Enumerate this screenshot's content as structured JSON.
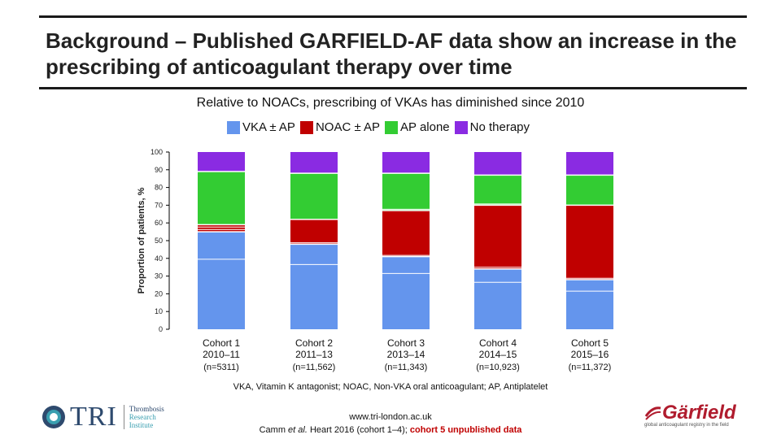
{
  "slide": {
    "title": "Background – Published GARFIELD-AF data show an increase in the prescribing of anticoagulant therapy over time",
    "subtitle": "Relative to NOACs, prescribing of VKAs has diminished since 2010",
    "abbreviations": "VKA, Vitamin K antagonist; NOAC, Non-VKA oral anticoagulant; AP, Antiplatelet",
    "website": "www.tri-london.ac.uk",
    "citation_prefix": "Camm ",
    "citation_etal": "et al.",
    "citation_mid": " Heart  2016 (cohort 1–4); ",
    "citation_red": "cohort 5 unpublished data"
  },
  "logos": {
    "tri": {
      "name": "TRI",
      "line1": "Thrombosis",
      "line2": "Research",
      "line3": "Institute"
    },
    "garfield": {
      "name": "Gärfield",
      "tagline": "global anticoagulant registry in the field"
    }
  },
  "colors": {
    "vka": "#6495ED",
    "noac": "#C00000",
    "ap": "#33CC33",
    "none": "#8A2BE2"
  },
  "chart_data": {
    "type": "bar",
    "stacked": true,
    "title": "",
    "xlabel": "",
    "ylabel": "Proportion of patients, %",
    "ylim": [
      0,
      100
    ],
    "yticks": [
      0,
      10,
      20,
      30,
      40,
      50,
      60,
      70,
      80,
      90,
      100
    ],
    "categories": [
      {
        "name": "Cohort 1",
        "years": "2010–11",
        "n": "(n=5311)"
      },
      {
        "name": "Cohort 2",
        "years": "2011–13",
        "n": "(n=11,562)"
      },
      {
        "name": "Cohort 3",
        "years": "2013–14",
        "n": "(n=11,343)"
      },
      {
        "name": "Cohort 4",
        "years": "2014–15",
        "n": "(n=10,923)"
      },
      {
        "name": "Cohort 5",
        "years": "2015–16",
        "n": "(n=11,372)"
      }
    ],
    "series": [
      {
        "name": "VKA ± AP",
        "key": "vka",
        "values": [
          55,
          48,
          41,
          34,
          28
        ]
      },
      {
        "name": "NOAC ± AP",
        "key": "noac",
        "values": [
          4,
          14,
          26,
          36,
          42
        ]
      },
      {
        "name": "AP alone",
        "key": "ap",
        "values": [
          30,
          26,
          21,
          17,
          17
        ]
      },
      {
        "name": "No therapy",
        "key": "none",
        "values": [
          11,
          12,
          12,
          13,
          13
        ]
      }
    ],
    "sub_dividers": {
      "vka": [
        39.5,
        36.5,
        31.5,
        26.5,
        21.5
      ],
      "noac": [
        [
          1.3,
          2.7
        ],
        [
          0.8
        ],
        [
          0.7
        ],
        [
          1.0
        ],
        [
          0.8
        ]
      ],
      "ap": [
        [],
        [],
        [
          0.7
        ],
        [
          0.7
        ],
        []
      ]
    }
  }
}
